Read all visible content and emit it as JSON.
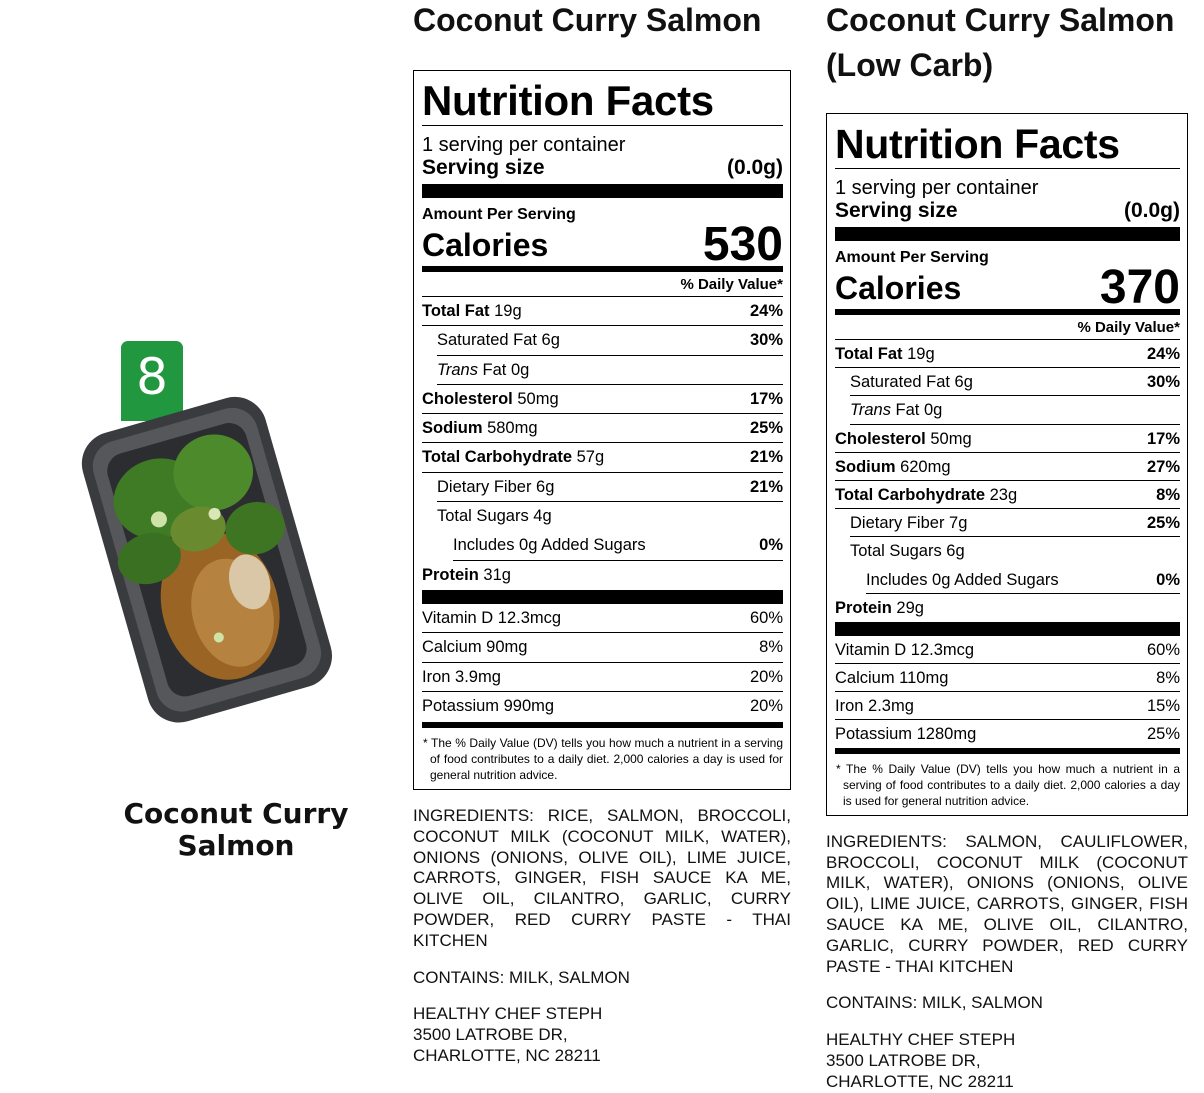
{
  "left": {
    "badge_number": "8",
    "badge_color": "#21973f",
    "product_name_line1": "Coconut Curry",
    "product_name_line2": "Salmon",
    "image": "meal-container-photo"
  },
  "labels": [
    {
      "title_lines": [
        "Coconut Curry Salmon"
      ],
      "heading": "Nutrition Facts",
      "servings": "1 serving per container",
      "serving_size_label": "Serving size",
      "serving_size": "(0.0g)",
      "amount_per_serving": "Amount Per Serving",
      "calories_label": "Calories",
      "calories": "530",
      "dv_header": "% Daily Value*",
      "nutrients": [
        {
          "bold": "Total Fat",
          "rest": " 19g",
          "dv": "24%",
          "indent": 0
        },
        {
          "bold": "",
          "rest": "Saturated Fat 6g",
          "dv": "30%",
          "indent": 1
        },
        {
          "italic": "Trans",
          "rest": " Fat 0g",
          "dv": "",
          "indent": 1
        },
        {
          "bold": "Cholesterol",
          "rest": " 50mg",
          "dv": "17%",
          "indent": 0
        },
        {
          "bold": "Sodium",
          "rest": " 580mg",
          "dv": "25%",
          "indent": 0
        },
        {
          "bold": "Total Carbohydrate",
          "rest": " 57g",
          "dv": "21%",
          "indent": 0
        },
        {
          "bold": "",
          "rest": "Dietary Fiber 6g",
          "dv": "21%",
          "indent": 1
        },
        {
          "bold": "",
          "rest": "Total Sugars 4g",
          "dv": "",
          "indent": 1
        },
        {
          "bold": "",
          "rest": "Includes 0g Added Sugars",
          "dv": "0%",
          "indent": 2
        },
        {
          "bold": "Protein",
          "rest": " 31g",
          "dv": "",
          "indent": 0
        }
      ],
      "vitamins": [
        {
          "rest": "Vitamin D 12.3mcg",
          "dv": "60%"
        },
        {
          "rest": "Calcium 90mg",
          "dv": "8%"
        },
        {
          "rest": "Iron 3.9mg",
          "dv": "20%"
        },
        {
          "rest": "Potassium 990mg",
          "dv": "20%"
        }
      ],
      "footnote": "* The % Daily Value (DV) tells you how much a nutrient in a serving of food contributes to a daily diet. 2,000 calories a day is used for general nutrition advice.",
      "ingredients": "INGREDIENTS: RICE, SALMON, BROCCOLI, COCONUT MILK (COCONUT MILK, WATER), ONIONS (ONIONS, OLIVE OIL), LIME JUICE, CARROTS, GINGER, FISH SAUCE KA ME, OLIVE OIL, CILANTRO, GARLIC, CURRY POWDER, RED CURRY PASTE - THAI KITCHEN",
      "contains": "CONTAINS: MILK, SALMON",
      "address": [
        "HEALTHY CHEF STEPH",
        "3500 LATROBE DR,",
        "CHARLOTTE, NC 28211"
      ]
    },
    {
      "title_lines": [
        "Coconut Curry Salmon",
        "(Low Carb)"
      ],
      "heading": "Nutrition Facts",
      "servings": "1 serving per container",
      "serving_size_label": "Serving size",
      "serving_size": "(0.0g)",
      "amount_per_serving": "Amount Per Serving",
      "calories_label": "Calories",
      "calories": "370",
      "dv_header": "% Daily Value*",
      "nutrients": [
        {
          "bold": "Total Fat",
          "rest": " 19g",
          "dv": "24%",
          "indent": 0
        },
        {
          "bold": "",
          "rest": "Saturated Fat 6g",
          "dv": "30%",
          "indent": 1
        },
        {
          "italic": "Trans",
          "rest": " Fat 0g",
          "dv": "",
          "indent": 1
        },
        {
          "bold": "Cholesterol",
          "rest": " 50mg",
          "dv": "17%",
          "indent": 0
        },
        {
          "bold": "Sodium",
          "rest": " 620mg",
          "dv": "27%",
          "indent": 0
        },
        {
          "bold": "Total Carbohydrate",
          "rest": " 23g",
          "dv": "8%",
          "indent": 0
        },
        {
          "bold": "",
          "rest": "Dietary Fiber 7g",
          "dv": "25%",
          "indent": 1
        },
        {
          "bold": "",
          "rest": "Total Sugars 6g",
          "dv": "",
          "indent": 1
        },
        {
          "bold": "",
          "rest": "Includes 0g Added Sugars",
          "dv": "0%",
          "indent": 2
        },
        {
          "bold": "Protein",
          "rest": " 29g",
          "dv": "",
          "indent": 0
        }
      ],
      "vitamins": [
        {
          "rest": "Vitamin D 12.3mcg",
          "dv": "60%"
        },
        {
          "rest": "Calcium 110mg",
          "dv": "8%"
        },
        {
          "rest": "Iron 2.3mg",
          "dv": "15%"
        },
        {
          "rest": "Potassium 1280mg",
          "dv": "25%"
        }
      ],
      "footnote": "* The % Daily Value (DV) tells you how much a nutrient in a serving of food contributes to a daily diet. 2,000 calories a day is used for general nutrition advice.",
      "ingredients": "INGREDIENTS: SALMON, CAULIFLOWER, BROCCOLI, COCONUT MILK (COCONUT MILK, WATER), ONIONS (ONIONS, OLIVE OIL), LIME JUICE, CARROTS, GINGER, FISH SAUCE KA ME, OLIVE OIL, CILANTRO, GARLIC, CURRY POWDER, RED CURRY PASTE - THAI KITCHEN",
      "contains": "CONTAINS: MILK, SALMON",
      "address": [
        "HEALTHY CHEF STEPH",
        "3500 LATROBE DR,",
        "CHARLOTTE, NC 28211"
      ]
    }
  ]
}
